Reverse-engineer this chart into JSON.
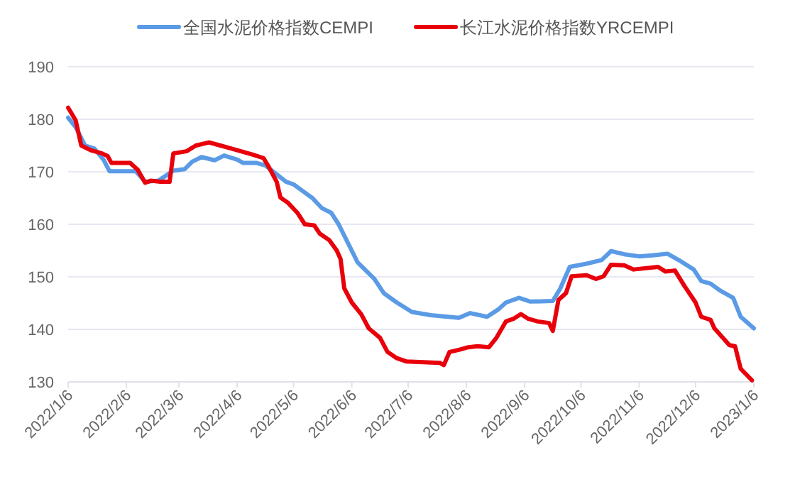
{
  "chart_data": {
    "type": "line",
    "xlim": [
      "2022-01-06",
      "2023-01-06"
    ],
    "ylim": [
      130,
      190
    ],
    "yticks": [
      130,
      140,
      150,
      160,
      170,
      180,
      190
    ],
    "xticks": [
      {
        "value": "2022-01-06",
        "label": "2022/1/6"
      },
      {
        "value": "2022-02-06",
        "label": "2022/2/6"
      },
      {
        "value": "2022-03-06",
        "label": "2022/3/6"
      },
      {
        "value": "2022-04-06",
        "label": "2022/4/6"
      },
      {
        "value": "2022-05-06",
        "label": "2022/5/6"
      },
      {
        "value": "2022-06-06",
        "label": "2022/6/6"
      },
      {
        "value": "2022-07-06",
        "label": "2022/7/6"
      },
      {
        "value": "2022-08-06",
        "label": "2022/8/6"
      },
      {
        "value": "2022-09-06",
        "label": "2022/9/6"
      },
      {
        "value": "2022-10-06",
        "label": "2022/10/6"
      },
      {
        "value": "2022-11-06",
        "label": "2022/11/6"
      },
      {
        "value": "2022-12-06",
        "label": "2022/12/6"
      },
      {
        "value": "2023-01-06",
        "label": "2023/1/6"
      }
    ],
    "grid": "y",
    "legend": "top",
    "series": [
      {
        "name": "全国水泥价格指数CEMPI",
        "color": "#5b9be6",
        "x": [
          "2022-01-06",
          "2022-01-10",
          "2022-01-15",
          "2022-01-20",
          "2022-01-25",
          "2022-01-28",
          "2022-02-11",
          "2022-02-16",
          "2022-02-23",
          "2022-03-03",
          "2022-03-09",
          "2022-03-13",
          "2022-03-18",
          "2022-03-25",
          "2022-03-30",
          "2022-04-06",
          "2022-04-09",
          "2022-04-16",
          "2022-04-21",
          "2022-04-27",
          "2022-05-02",
          "2022-05-06",
          "2022-05-11",
          "2022-05-16",
          "2022-05-21",
          "2022-05-26",
          "2022-05-30",
          "2022-06-04",
          "2022-06-09",
          "2022-06-18",
          "2022-06-23",
          "2022-06-30",
          "2022-07-08",
          "2022-07-18",
          "2022-08-02",
          "2022-08-08",
          "2022-08-17",
          "2022-08-23",
          "2022-08-27",
          "2022-09-03",
          "2022-09-09",
          "2022-09-21",
          "2022-09-25",
          "2022-09-30",
          "2022-10-09",
          "2022-10-17",
          "2022-10-22",
          "2022-10-29",
          "2022-11-06",
          "2022-11-13",
          "2022-11-21",
          "2022-11-27",
          "2022-12-05",
          "2022-12-09",
          "2022-12-14",
          "2022-12-19",
          "2022-12-26",
          "2022-12-30",
          "2023-01-06"
        ],
        "values": [
          180.3,
          178.5,
          175.0,
          174.4,
          172.2,
          170.1,
          170.1,
          168.1,
          168.3,
          170.2,
          170.5,
          171.9,
          172.8,
          172.2,
          173.1,
          172.3,
          171.7,
          171.7,
          171.2,
          169.5,
          168.1,
          167.6,
          166.3,
          165.0,
          163.1,
          162.2,
          160.0,
          156.4,
          152.8,
          149.6,
          146.9,
          145.1,
          143.3,
          142.7,
          142.2,
          143.1,
          142.4,
          143.8,
          145.1,
          146.0,
          145.3,
          145.4,
          147.8,
          151.9,
          152.5,
          153.2,
          154.9,
          154.3,
          153.9,
          154.1,
          154.4,
          153.2,
          151.4,
          149.2,
          148.7,
          147.4,
          146.0,
          142.4,
          140.2
        ]
      },
      {
        "name": "长江水泥价格指数YRCEMPI",
        "color": "#e8000b",
        "x": [
          "2022-01-06",
          "2022-01-10",
          "2022-01-13",
          "2022-01-18",
          "2022-01-24",
          "2022-01-27",
          "2022-01-29",
          "2022-02-08",
          "2022-02-12",
          "2022-02-16",
          "2022-02-19",
          "2022-02-24",
          "2022-03-01",
          "2022-03-03",
          "2022-03-10",
          "2022-03-15",
          "2022-03-22",
          "2022-03-27",
          "2022-04-03",
          "2022-04-08",
          "2022-04-12",
          "2022-04-14",
          "2022-04-20",
          "2022-04-23",
          "2022-04-27",
          "2022-04-29",
          "2022-05-03",
          "2022-05-08",
          "2022-05-12",
          "2022-05-17",
          "2022-05-20",
          "2022-05-25",
          "2022-05-29",
          "2022-05-31",
          "2022-06-02",
          "2022-06-06",
          "2022-06-11",
          "2022-06-15",
          "2022-06-21",
          "2022-06-25",
          "2022-06-30",
          "2022-07-05",
          "2022-07-23",
          "2022-07-25",
          "2022-07-28",
          "2022-08-02",
          "2022-08-07",
          "2022-08-12",
          "2022-08-18",
          "2022-08-22",
          "2022-08-27",
          "2022-08-31",
          "2022-09-04",
          "2022-09-08",
          "2022-09-13",
          "2022-09-19",
          "2022-09-21",
          "2022-09-24",
          "2022-09-28",
          "2022-10-01",
          "2022-10-09",
          "2022-10-14",
          "2022-10-18",
          "2022-10-22",
          "2022-10-29",
          "2022-11-03",
          "2022-11-16",
          "2022-11-20",
          "2022-11-25",
          "2022-11-30",
          "2022-12-06",
          "2022-12-09",
          "2022-12-14",
          "2022-12-16",
          "2022-12-24",
          "2022-12-27",
          "2022-12-30",
          "2023-01-05"
        ],
        "values": [
          182.2,
          179.8,
          175.0,
          174.1,
          173.5,
          173.0,
          171.7,
          171.7,
          170.4,
          167.9,
          168.3,
          168.1,
          168.1,
          173.5,
          173.9,
          175.0,
          175.6,
          175.1,
          174.4,
          173.9,
          173.5,
          173.3,
          172.6,
          170.8,
          168.1,
          165.1,
          164.1,
          162.2,
          160.0,
          159.8,
          158.2,
          157.0,
          155.0,
          153.4,
          147.8,
          145.1,
          142.9,
          140.2,
          138.4,
          135.7,
          134.5,
          133.9,
          133.6,
          133.2,
          135.7,
          136.1,
          136.6,
          136.8,
          136.6,
          138.4,
          141.5,
          142.0,
          142.9,
          142.0,
          141.5,
          141.2,
          139.7,
          145.6,
          146.9,
          150.1,
          150.3,
          149.6,
          150.1,
          152.3,
          152.2,
          151.4,
          151.9,
          151.0,
          151.2,
          148.3,
          145.1,
          142.4,
          141.8,
          140.2,
          137.0,
          136.8,
          132.5,
          130.3
        ]
      }
    ]
  }
}
